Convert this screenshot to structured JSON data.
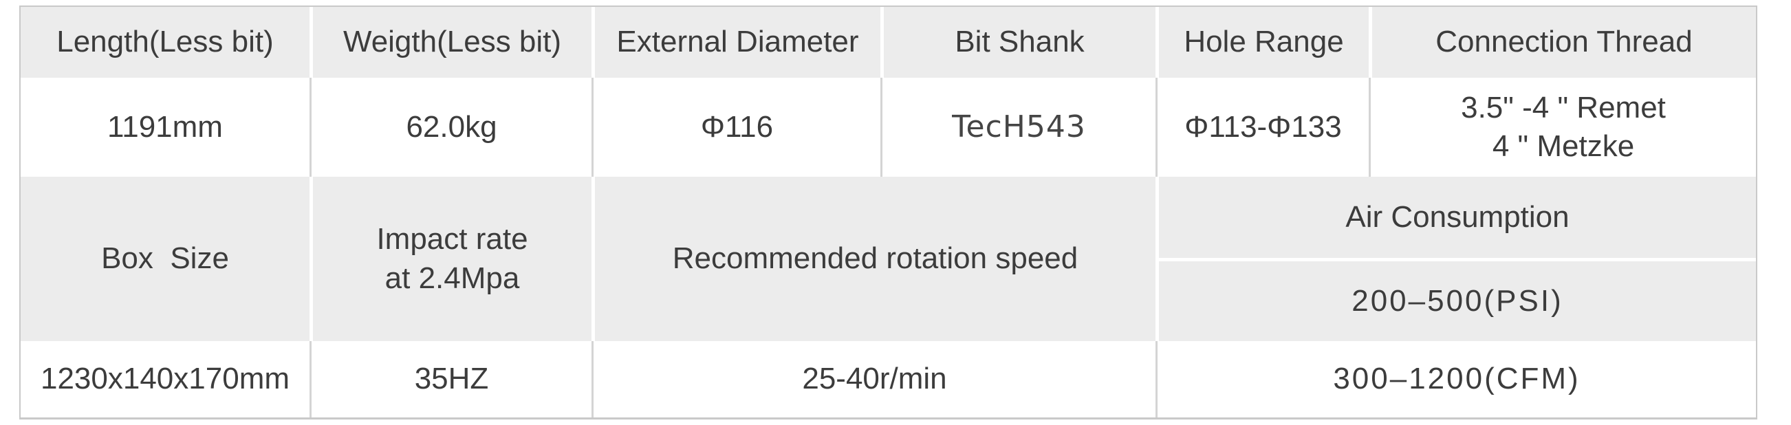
{
  "spec_table": {
    "type": "table",
    "columns": [
      "Length(Less bit)",
      "Weigth(Less bit)",
      "External Diameter",
      "Bit Shank",
      "Hole Range",
      "Connection Thread"
    ],
    "values": [
      "1191mm",
      "62.0kg",
      "Φ116",
      "TecH543",
      "Φ113-Φ133",
      "3.5\" -4 \" Remet\n4 \" Metzke"
    ],
    "lower_section": {
      "box_size": {
        "label": "Box  Size",
        "value": "1230x140x170mm"
      },
      "impact_rate": {
        "label": "Impact rate\nat 2.4Mpa",
        "value": "35HZ"
      },
      "rotation_speed": {
        "label": "Recommended rotation speed",
        "value": "25-40r/min"
      },
      "air_consumption": {
        "label": "Air Consumption",
        "psi": "200–500(PSI)",
        "cfm": "300–1200(CFM)"
      }
    },
    "colors": {
      "header_bg": "#ececec",
      "grid_line": "#d4d4d4",
      "border": "#c9c9c9",
      "text": "#3c3c3c"
    }
  }
}
